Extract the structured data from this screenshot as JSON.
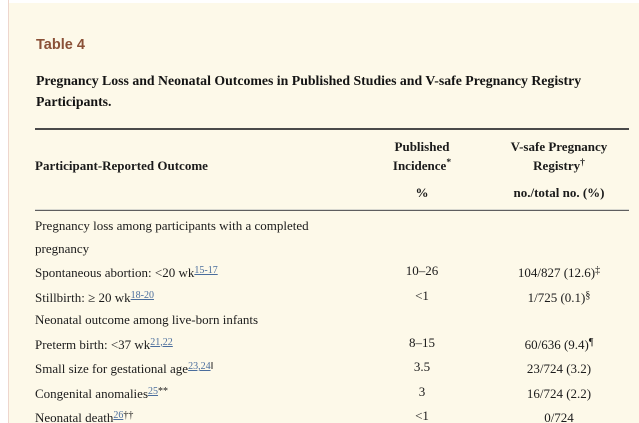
{
  "colors": {
    "page_background": "#fdf9e9",
    "outer_background": "#ffffff",
    "gutter_border": "#eed6cd",
    "table_label_accent": "#8a5137",
    "link_blue": "#4a6d9c",
    "rule": "#4a4a4a",
    "text": "#1b1b1b"
  },
  "header": {
    "table_label": "Table 4",
    "title": "Pregnancy Loss and Neonatal Outcomes in Published Studies and V-safe Pregnancy Registry Participants."
  },
  "table": {
    "columns": {
      "col1": "Participant-Reported Outcome",
      "col2_line1": "Published",
      "col2_line2": "Incidence",
      "col2_marker": "*",
      "col2_unit": "%",
      "col3_line1": "V-safe Pregnancy",
      "col3_line2": "Registry",
      "col3_marker": "†",
      "col3_unit": "no./total no. (%)"
    },
    "rows": [
      {
        "label": "Pregnancy loss among participants with a completed pregnancy",
        "published": "",
        "vsafe": ""
      },
      {
        "label": "Spontaneous abortion: <20 wk",
        "ref": "15-17",
        "published": "10–26",
        "vsafe": "104/827 (12.6)",
        "vsafe_marker": "‡"
      },
      {
        "label": "Stillbirth: ≥ 20 wk",
        "ref": "18-20",
        "published": "<1",
        "vsafe": "1/725 (0.1)",
        "vsafe_marker": "§"
      },
      {
        "label": "Neonatal outcome among live-born infants",
        "published": "",
        "vsafe": ""
      },
      {
        "label": "Preterm birth: <37 wk",
        "ref": "21,22",
        "published": "8–15",
        "vsafe": "60/636 (9.4)",
        "vsafe_marker": "¶"
      },
      {
        "label": "Small size for gestational age",
        "ref": "23,24",
        "marker": "‖",
        "published": "3.5",
        "vsafe": "23/724 (3.2)"
      },
      {
        "label": "Congenital anomalies",
        "ref": "25",
        "marker": "**",
        "published": "3",
        "vsafe": "16/724 (2.2)"
      },
      {
        "label": "Neonatal death",
        "ref": "26",
        "marker": "††",
        "published": "<1",
        "vsafe": "0/724"
      }
    ]
  }
}
